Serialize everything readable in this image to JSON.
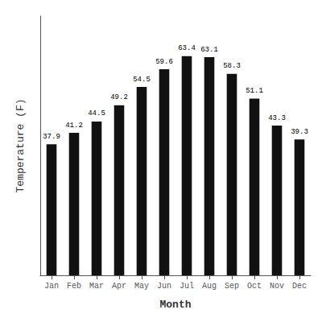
{
  "chart_data": {
    "type": "bar",
    "categories": [
      "Jan",
      "Feb",
      "Mar",
      "Apr",
      "May",
      "Jun",
      "Jul",
      "Aug",
      "Sep",
      "Oct",
      "Nov",
      "Dec"
    ],
    "values": [
      37.9,
      41.2,
      44.5,
      49.2,
      54.5,
      59.6,
      63.4,
      63.1,
      58.3,
      51.1,
      43.3,
      39.3
    ],
    "color": "#111111",
    "xlabel": "Month",
    "ylabel": "Temperature (F)",
    "ylim": [
      0,
      75
    ],
    "grid": false,
    "data_labels": true,
    "tick_labels": "x"
  }
}
